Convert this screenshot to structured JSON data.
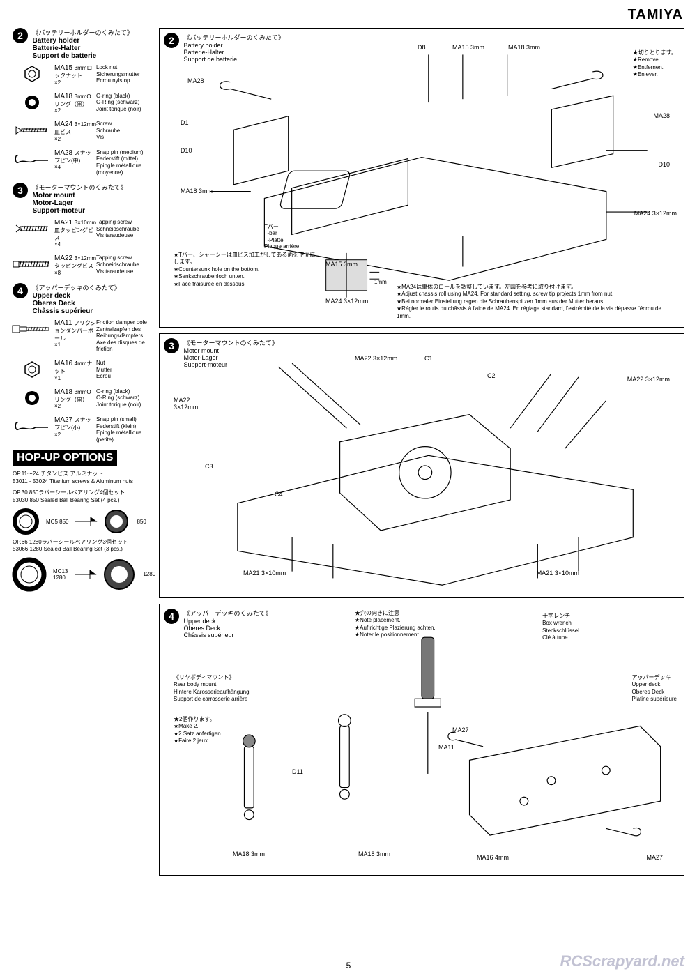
{
  "brand": "TAMIYA",
  "page_number": "5",
  "watermark": "RCScrapyard.net",
  "sidebar": {
    "step2": {
      "jp": "《バッテリーホルダーのくみたて》",
      "en": "Battery holder",
      "de": "Batterie-Halter",
      "fr": "Support de batterie",
      "parts": [
        {
          "code": "MA15",
          "qty": "×2",
          "icon": "hex",
          "desc_jp": "3mmロックナット",
          "desc": [
            "Lock nut",
            "Sicherungsmutter",
            "Ecrou nylstop"
          ]
        },
        {
          "code": "MA18",
          "qty": "×2",
          "icon": "oring",
          "desc_jp": "3mmOリング（黒）",
          "desc": [
            "O-ring (black)",
            "O-Ring (schwarz)",
            "Joint torique (noir)"
          ]
        },
        {
          "code": "MA24",
          "qty": "×2",
          "icon": "flatscrew",
          "desc_jp": "3×12mm皿ビス",
          "desc": [
            "Screw",
            "Schraube",
            "Vis"
          ]
        },
        {
          "code": "MA28",
          "qty": "×4",
          "icon": "snappin",
          "desc_jp": "スナップピン(中)",
          "desc": [
            "Snap pin (medium)",
            "Federstift (mittel)",
            "Epingle métallique (moyenne)"
          ]
        }
      ]
    },
    "step3": {
      "jp": "《モーターマウントのくみたて》",
      "en": "Motor mount",
      "de": "Motor-Lager",
      "fr": "Support-moteur",
      "parts": [
        {
          "code": "MA21",
          "qty": "×4",
          "icon": "tapscrew",
          "desc_jp": "3×10mm皿タッピングビス",
          "desc": [
            "Tapping screw",
            "Schneidschraube",
            "Vis taraudeuse"
          ]
        },
        {
          "code": "MA22",
          "qty": "×8",
          "icon": "tapscrew2",
          "desc_jp": "3×12mmタッピングビス",
          "desc": [
            "Tapping screw",
            "Schneidschraube",
            "Vis taraudeuse"
          ]
        }
      ]
    },
    "step4": {
      "jp": "《アッパーデッキのくみたて》",
      "en": "Upper deck",
      "de": "Oberes Deck",
      "fr": "Châssis supérieur",
      "parts": [
        {
          "code": "MA11",
          "qty": "×1",
          "icon": "pole",
          "desc_jp": "フリクションダンパーポール",
          "desc": [
            "Friction damper pole",
            "Zentralzapfen des Reibungsdämpfers",
            "Axe des disques de friction"
          ]
        },
        {
          "code": "MA16",
          "qty": "×1",
          "icon": "hex",
          "desc_jp": "4mmナット",
          "desc": [
            "Nut",
            "Mutter",
            "Ecrou"
          ]
        },
        {
          "code": "MA18",
          "qty": "×2",
          "icon": "oring",
          "desc_jp": "3mmOリング（黒）",
          "desc": [
            "O-ring (black)",
            "O-Ring (schwarz)",
            "Joint torique (noir)"
          ]
        },
        {
          "code": "MA27",
          "qty": "×2",
          "icon": "snappin",
          "desc_jp": "スナップピン(小)",
          "desc": [
            "Snap pin (small)",
            "Federstift (klein)",
            "Epingle métallique (petite)"
          ]
        }
      ]
    }
  },
  "hopup": {
    "banner": "HOP-UP OPTIONS",
    "items": [
      {
        "jp": "OP.11～24 チタンビス アルミナット",
        "en": "53011 - 53024 Titanium screws & Aluminum nuts"
      },
      {
        "jp": "OP.30 850ラバーシールベアリング4個セット",
        "en": "53030 850 Sealed Ball Bearing Set (4 pcs.)"
      }
    ],
    "bearing_a": {
      "from": "MC5",
      "from_sz": "850",
      "to_sz": "850"
    },
    "item3": {
      "jp": "OP.66 1280ラバーシールベアリング3個セット",
      "en": "53066 1280 Sealed Ball Bearing Set (3 pcs.)"
    },
    "bearing_b": {
      "from": "MC13",
      "from_sz": "1280",
      "to_sz": "1280"
    }
  },
  "panel2": {
    "jp": "《バッテリーホルダーのくみたて》",
    "en": "Battery holder",
    "de": "Batterie-Halter",
    "fr": "Support de batterie",
    "callouts": {
      "D8": "D8",
      "MA15": "MA15 3mm",
      "MA18t": "MA18 3mm",
      "MA28l": "MA28",
      "MA28r": "MA28",
      "D1": "D1",
      "D10l": "D10",
      "D10r": "D10",
      "MA18l": "MA18 3mm",
      "MA24r": "MA24 3×12mm",
      "tbar_jp": "Tバー",
      "tbar": [
        "T-bar",
        "T-Platte",
        "Plaque arrière"
      ],
      "MA15b": "MA15 3mm",
      "MA24b": "MA24 3×12mm",
      "remove": [
        "★切りとります。",
        "★Remove.",
        "★Entfernen.",
        "★Enlever."
      ]
    },
    "flatnote": {
      "jp": "★Tバー、シャーシーは皿ビス加工がしてある面を下面にします。",
      "en": "★Countersunk hole on the bottom.",
      "de": "★Senkschraubenloch unten.",
      "fr": "★Face fraisurée en dessous."
    },
    "adjust": {
      "jp": "★MA24は車体のロールを調整しています。左図を参考に取り付けます。",
      "en": "★Adjust chassis roll using MA24. For standard setting, screw tip projects 1mm from nut.",
      "de": "★Bei normaler Einstellung ragen die Schraubenspitzen 1mm aus der Mutter heraus.",
      "fr": "★Régler le roulis du châssis à l'aide de MA24. En réglage standard, l'extrémité de la vis dépasse l'écrou de 1mm.",
      "dim": "1mm"
    }
  },
  "panel3": {
    "jp": "《モーターマウントのくみたて》",
    "en": "Motor mount",
    "de": "Motor-Lager",
    "fr": "Support-moteur",
    "callouts": {
      "MA22tl": "MA22 3×12mm",
      "C1": "C1",
      "C2": "C2",
      "MA22tr": "MA22 3×12mm",
      "MA22l": "MA22\n3×12mm",
      "C3": "C3",
      "C4": "C4",
      "MA21bl": "MA21 3×10mm",
      "MA21br": "MA21 3×10mm"
    }
  },
  "panel4": {
    "jp": "《アッパーデッキのくみたて》",
    "en": "Upper deck",
    "de": "Oberes Deck",
    "fr": "Châssis supérieur",
    "placement": [
      "★穴の向きに注意",
      "★Note placement.",
      "★Auf richtige Plazierung achten.",
      "★Noter le positionnement."
    ],
    "wrench": [
      "十字レンチ",
      "Box wrench",
      "Steckschlüssel",
      "Clé à tube"
    ],
    "upperdeck": [
      "アッパーデッキ",
      "Upper deck",
      "Oberes Deck",
      "Platine supérieure"
    ],
    "rearbody": [
      "《リヤボディマウント》",
      "Rear body mount",
      "Hintere Karosserieaufhängung",
      "Support de carrosserie arrière"
    ],
    "make2": [
      "★2個作ります。",
      "★Make 2.",
      "★2 Satz anfertigen.",
      "★Faire 2 jeux."
    ],
    "callouts": {
      "D11": "D11",
      "MA18a": "MA18 3mm",
      "MA18b": "MA18 3mm",
      "MA11": "MA11",
      "MA16": "MA16 4mm",
      "MA27a": "MA27",
      "MA27b": "MA27"
    }
  }
}
